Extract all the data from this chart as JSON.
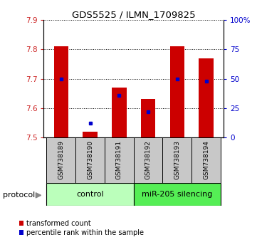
{
  "title": "GDS5525 / ILMN_1709825",
  "samples": [
    "GSM738189",
    "GSM738190",
    "GSM738191",
    "GSM738192",
    "GSM738193",
    "GSM738194"
  ],
  "red_values": [
    7.81,
    7.52,
    7.67,
    7.63,
    7.81,
    7.77
  ],
  "blue_values": [
    50,
    12,
    36,
    22,
    50,
    48
  ],
  "ylim": [
    7.5,
    7.9
  ],
  "right_ylim": [
    0,
    100
  ],
  "red_color": "#cc0000",
  "blue_color": "#0000cc",
  "control_color": "#bbffbb",
  "silencing_color": "#55ee55",
  "gray_color": "#c8c8c8",
  "tick_label_color_left": "#cc2222",
  "tick_label_color_right": "#0000cc",
  "bar_width": 0.5,
  "legend_red_label": "transformed count",
  "legend_blue_label": "percentile rank within the sample",
  "protocol_label": "protocol",
  "yticks_left": [
    7.5,
    7.6,
    7.7,
    7.8,
    7.9
  ],
  "yticks_right": [
    0,
    25,
    50,
    75,
    100
  ]
}
